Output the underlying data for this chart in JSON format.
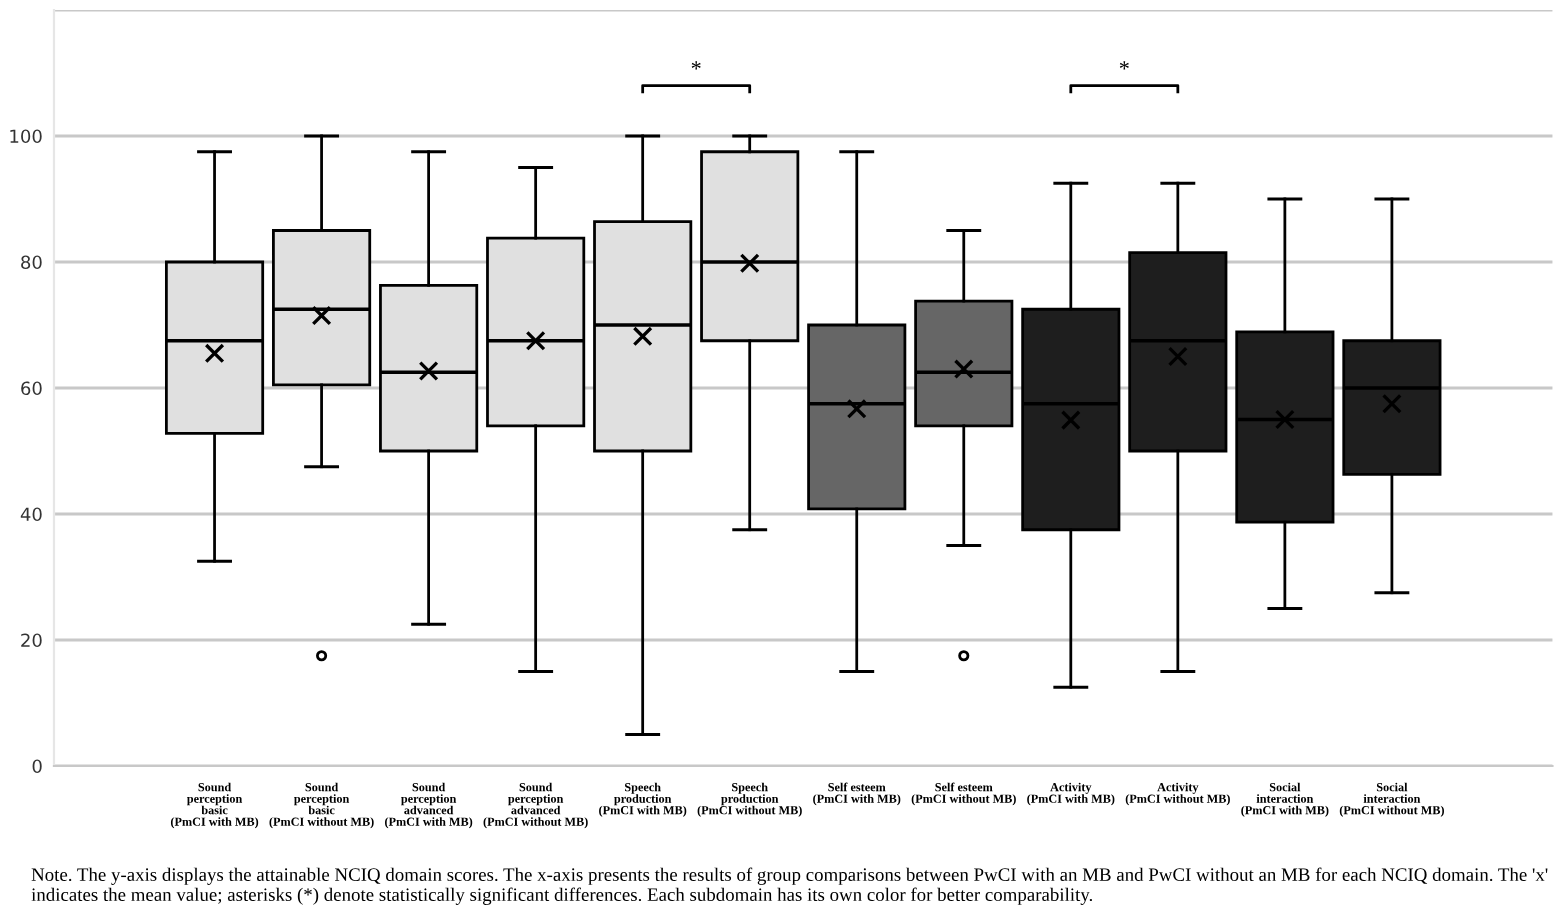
{
  "chart_data": {
    "type": "box",
    "categories": [
      "Sound\nperception\nbasic\n(PmCI with MB)",
      "Sound\nperception\nbasic\n(PmCI without MB)",
      "Sound\nperception\nadvanced\n(PmCI with MB)",
      "Sound\nperception\nadvanced\n(PmCI without MB)",
      "Speech\nproduction\n(PmCI with MB)",
      "Speech\nproduction\n(PmCI without MB)",
      "Self esteem\n(PmCI with MB)",
      "Self esteem\n(PmCI without MB)",
      "Activity\n(PmCI with MB)",
      "Activity\n(PmCI without MB)",
      "Social\ninteraction\n(PmCI with MB)",
      "Social\ninteraction\n(PmCI without MB)"
    ],
    "boxes": [
      {
        "low": 32.5,
        "q1": 52.8,
        "median": 67.5,
        "q3": 80,
        "high": 97.5,
        "mean": 65.5
      },
      {
        "low": 47.5,
        "q1": 60.5,
        "median": 72.5,
        "q3": 85,
        "high": 100,
        "mean": 71.5,
        "outliers": [
          17.5
        ]
      },
      {
        "low": 22.5,
        "q1": 50,
        "median": 62.5,
        "q3": 76.3,
        "high": 97.5,
        "mean": 62.7
      },
      {
        "low": 15,
        "q1": 54,
        "median": 67.5,
        "q3": 83.8,
        "high": 95,
        "mean": 67.5
      },
      {
        "low": 5,
        "q1": 50,
        "median": 70,
        "q3": 86.4,
        "high": 100,
        "mean": 68.2
      },
      {
        "low": 37.5,
        "q1": 67.5,
        "median": 80,
        "q3": 97.5,
        "high": 100,
        "mean": 79.8
      },
      {
        "low": 15,
        "q1": 40.8,
        "median": 57.5,
        "q3": 70,
        "high": 97.5,
        "mean": 56.7
      },
      {
        "low": 35,
        "q1": 54,
        "median": 62.5,
        "q3": 73.8,
        "high": 85,
        "mean": 63,
        "outliers": [
          17.5
        ]
      },
      {
        "low": 12.5,
        "q1": 37.5,
        "median": 57.5,
        "q3": 72.5,
        "high": 92.5,
        "mean": 54.9
      },
      {
        "low": 15,
        "q1": 50,
        "median": 67.5,
        "q3": 81.5,
        "high": 92.5,
        "mean": 65
      },
      {
        "low": 25,
        "q1": 38.7,
        "median": 55,
        "q3": 68.9,
        "high": 90,
        "mean": 55
      },
      {
        "low": 27.5,
        "q1": 46.3,
        "median": 60,
        "q3": 67.5,
        "high": 90,
        "mean": 57.5
      }
    ],
    "colors": [
      "#e0e0e0",
      "#e0e0e0",
      "#e0e0e0",
      "#e0e0e0",
      "#e0e0e0",
      "#e0e0e0",
      "#666666",
      "#666666",
      "#1e1e1e",
      "#1e1e1e",
      "#1e1e1e",
      "#1e1e1e"
    ],
    "ylim": [
      0,
      120
    ],
    "yticks": [
      0,
      20,
      40,
      60,
      80,
      100,
      {
        "value": 120,
        "label": null
      }
    ],
    "grid": "y",
    "annotations": [
      "*",
      "*",
      "Note. The y-axis displays the attainable NCIQ domain scores. The x-axis presents the results of group comparisons between PwCI with an MB and PwCI without an MB for each NCIQ domain. The 'x' indicates the mean value; asterisks (*) denote statistically significant differences. Each subdomain has its own color for better comparability."
    ]
  }
}
